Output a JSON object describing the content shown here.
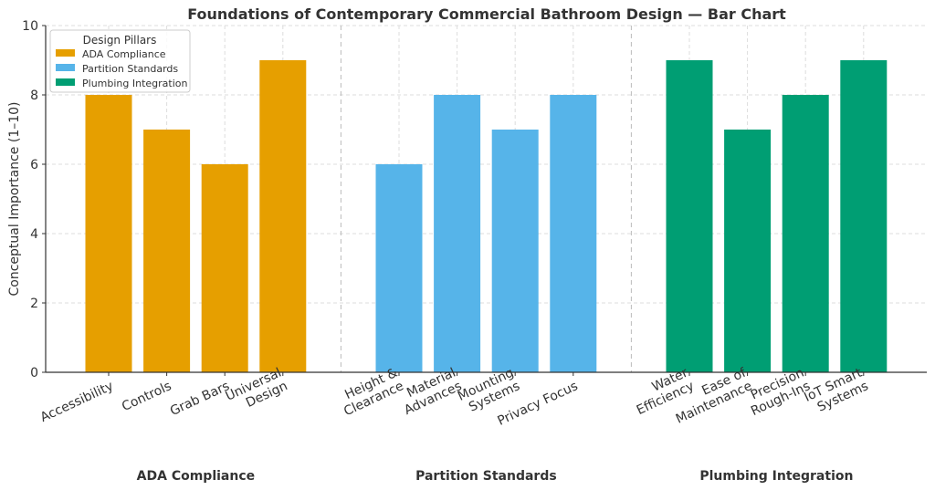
{
  "chart_data": {
    "type": "bar",
    "title": "Foundations of Contemporary Commercial Bathroom Design — Bar Chart",
    "xlabel": "",
    "ylabel": "Conceptual Importance (1–10)",
    "ylim": [
      0,
      10
    ],
    "yticks": [
      "0",
      "2",
      "4",
      "6",
      "8",
      "10"
    ],
    "grid": true,
    "legend": {
      "title": "Design Pillars",
      "placement": "top-left",
      "entries": [
        "ADA Compliance",
        "Partition Standards",
        "Plumbing Integration"
      ]
    },
    "series": [
      {
        "name": "ADA Compliance",
        "color": "#E69F00",
        "categories": [
          [
            "Accessibility"
          ],
          [
            "Controls"
          ],
          [
            "Grab Bars"
          ],
          [
            "Universal",
            "Design"
          ]
        ],
        "values": [
          8,
          7,
          6,
          9
        ]
      },
      {
        "name": "Partition Standards",
        "color": "#56B4E9",
        "categories": [
          [
            "Height &",
            "Clearance"
          ],
          [
            "Material",
            "Advances"
          ],
          [
            "Mounting",
            "Systems"
          ],
          [
            "Privacy Focus"
          ]
        ],
        "values": [
          6,
          8,
          7,
          8
        ]
      },
      {
        "name": "Plumbing Integration",
        "color": "#009E73",
        "categories": [
          [
            "Water",
            "Efficiency"
          ],
          [
            "Ease of",
            "Maintenance"
          ],
          [
            "Precision",
            "Rough-Ins"
          ],
          [
            "IoT Smart",
            "Systems"
          ]
        ],
        "values": [
          9,
          7,
          8,
          9
        ]
      }
    ],
    "group_labels": [
      "ADA Compliance",
      "Partition Standards",
      "Plumbing Integration"
    ]
  }
}
